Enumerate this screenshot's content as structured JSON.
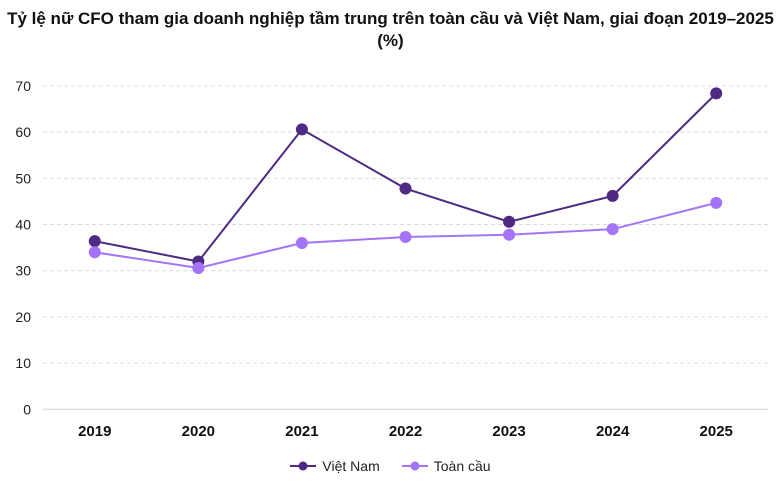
{
  "chart_data": {
    "type": "line",
    "title": "Tỷ lệ nữ CFO tham gia doanh nghiệp tầm trung trên toàn cầu và Việt Nam, giai đoạn 2019–2025 (%)",
    "categories": [
      "2019",
      "2020",
      "2021",
      "2022",
      "2023",
      "2024",
      "2025"
    ],
    "ylim": [
      0,
      70
    ],
    "yticks": [
      0,
      10,
      20,
      30,
      40,
      50,
      60,
      70
    ],
    "grid": true,
    "legend": "bottom",
    "series": [
      {
        "name": "Việt Nam",
        "color": "#4E2A84",
        "values": [
          36.4,
          32.0,
          60.6,
          47.8,
          40.6,
          46.2,
          68.4
        ]
      },
      {
        "name": "Toàn cầu",
        "color": "#A374F7",
        "values": [
          34.0,
          30.6,
          36.0,
          37.3,
          37.8,
          39.0,
          44.7
        ]
      }
    ]
  }
}
